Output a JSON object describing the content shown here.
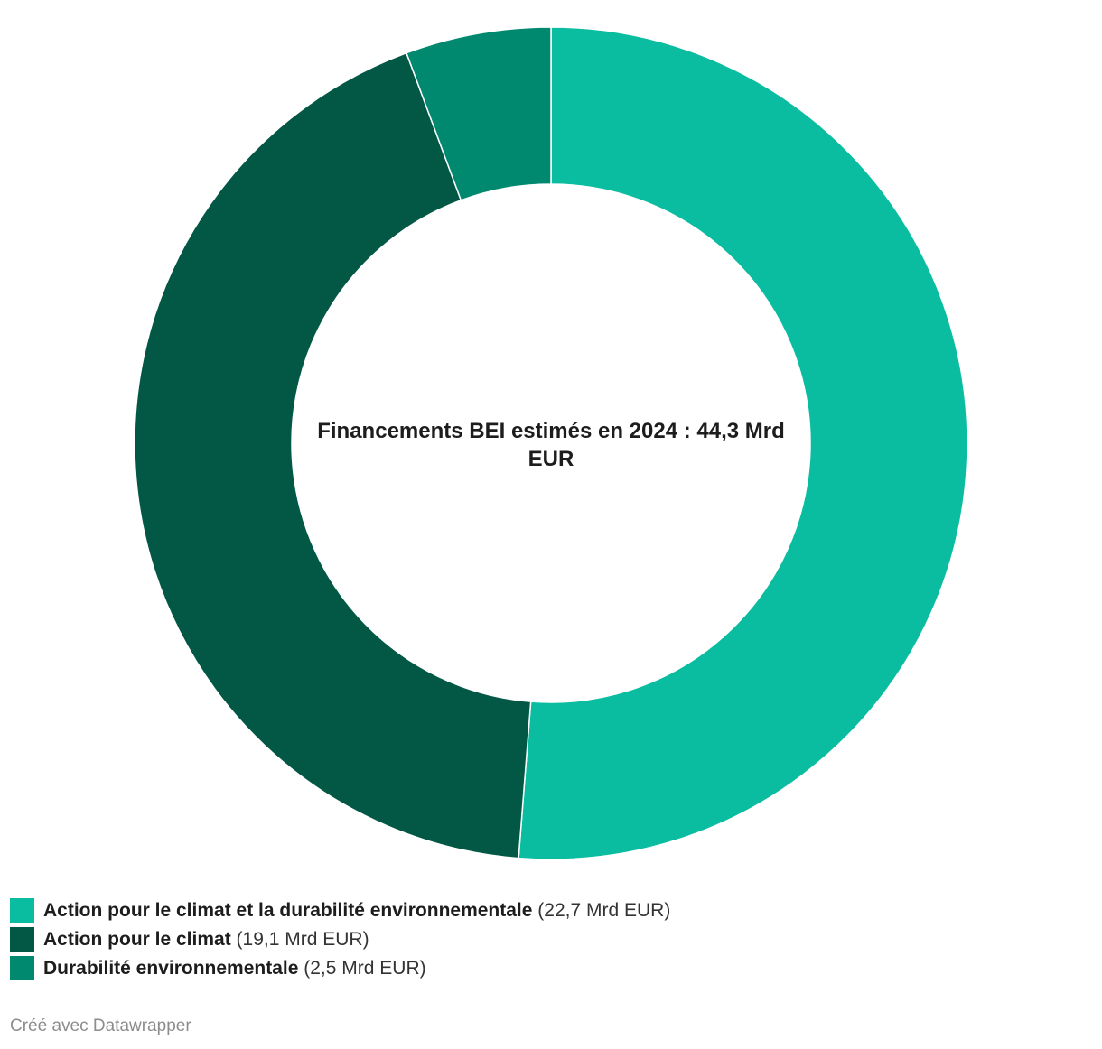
{
  "chart_data": {
    "type": "pie",
    "variant": "donut",
    "center_label": "Financements BEI estimés en 2024 : 44,3 Mrd EUR",
    "slices": [
      {
        "name": "Action pour le climat et la durabilité environnementale",
        "value": 22.7,
        "value_label": "(22,7 Mrd EUR)",
        "color": "#0abda0"
      },
      {
        "name": "Action pour le climat",
        "value": 19.1,
        "value_label": "(19,1 Mrd EUR)",
        "color": "#025845"
      },
      {
        "name": "Durabilité environnementale",
        "value": 2.5,
        "value_label": "(2,5 Mrd EUR)",
        "color": "#00896f"
      }
    ],
    "legend_position": "bottom-left"
  },
  "footer": {
    "credit": "Créé avec Datawrapper"
  }
}
